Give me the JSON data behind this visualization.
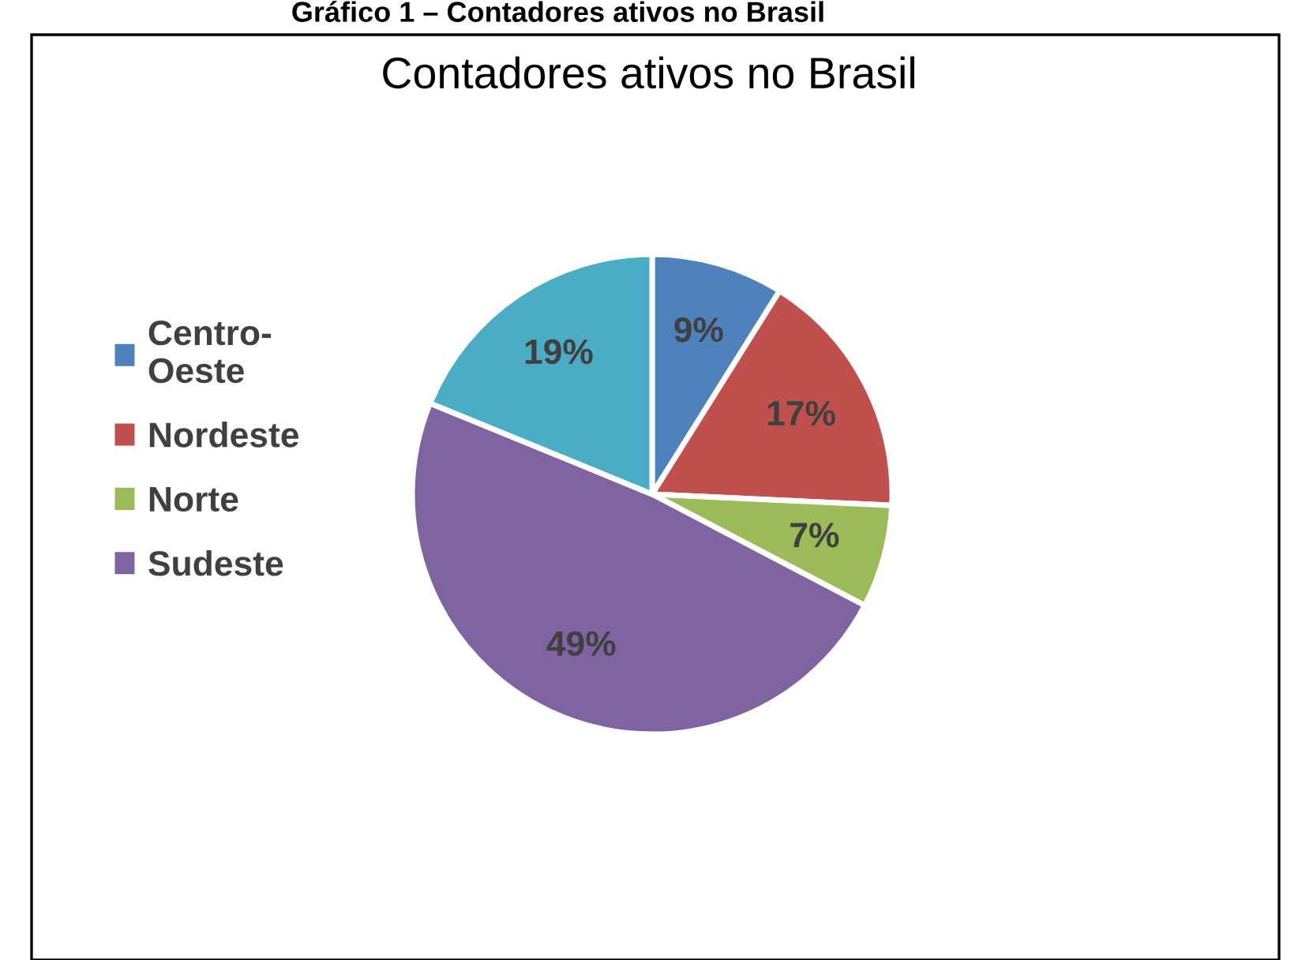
{
  "chart_data": {
    "type": "pie",
    "title": "Contadores ativos no Brasil",
    "annotations": [
      "Gráfico 1 – Contadores ativos no Brasil"
    ],
    "categories": [
      "Centro-Oeste",
      "Nordeste",
      "Norte",
      "Sudeste",
      null
    ],
    "values": [
      9,
      17,
      7,
      49,
      19
    ],
    "colors": [
      "#4f81bd",
      "#c0504d",
      "#9bbb59",
      "#8064a2",
      "#4bacc6"
    ],
    "value_labels": [
      "9%",
      "17%",
      "7%",
      "49%",
      "19%"
    ],
    "legend": "left"
  }
}
